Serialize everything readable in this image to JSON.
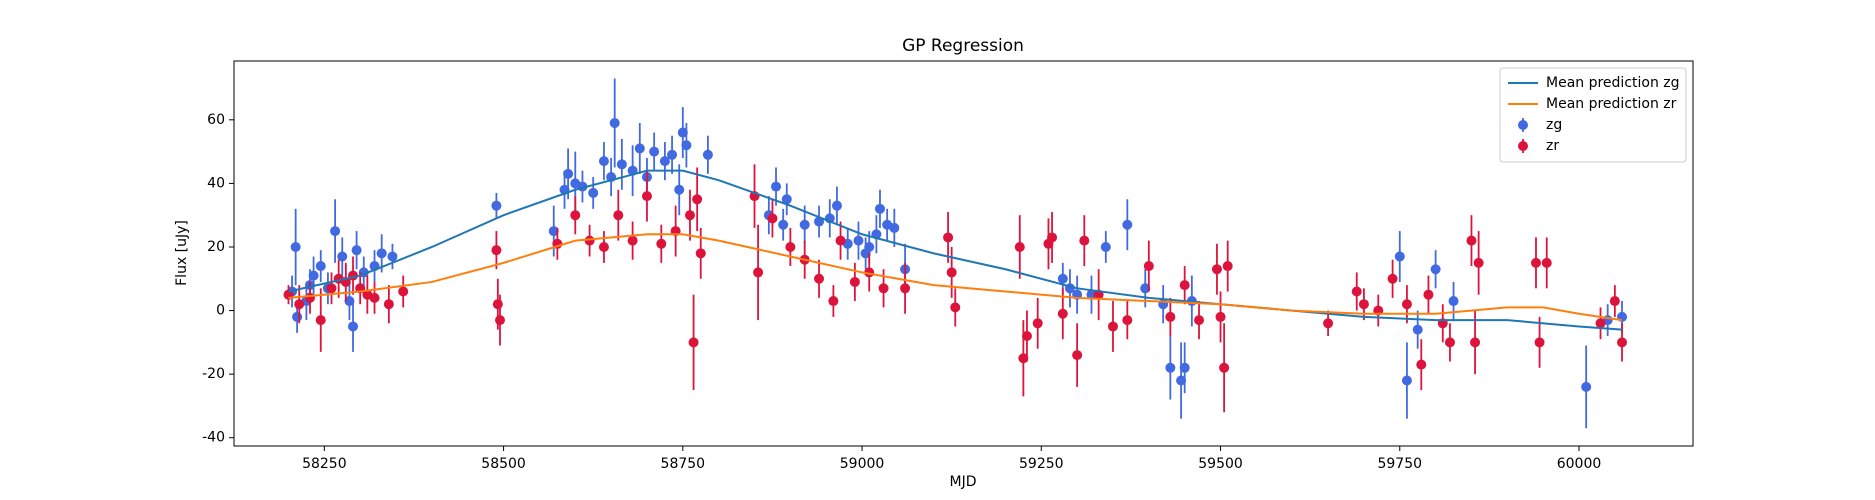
{
  "chart_data": {
    "type": "scatter",
    "title": "GP Regression",
    "xlabel": "MJD",
    "ylabel": "Flux [uJy]",
    "xlim": [
      58124,
      60159
    ],
    "ylim": [
      -42.6,
      78.5
    ],
    "xticks": [
      58250,
      58500,
      58750,
      59000,
      59250,
      59500,
      59750,
      60000
    ],
    "yticks": [
      -40,
      -20,
      0,
      20,
      40,
      60
    ],
    "legend": "upper right",
    "series": [
      {
        "name": "Mean prediction zg",
        "kind": "line",
        "color": "#1f77b4",
        "x": [
          58200,
          58300,
          58400,
          58500,
          58600,
          58700,
          58750,
          58800,
          58900,
          59000,
          59100,
          59200,
          59300,
          59400,
          59500,
          59600,
          59700,
          59800,
          59900,
          60000,
          60060
        ],
        "values": [
          6,
          11,
          20,
          30,
          38,
          44,
          44,
          41,
          33,
          24,
          18,
          13,
          7,
          4,
          2,
          0,
          -2,
          -3,
          -3,
          -5,
          -6
        ]
      },
      {
        "name": "Mean prediction zr",
        "kind": "line",
        "color": "#ff7f0e",
        "x": [
          58200,
          58300,
          58400,
          58500,
          58600,
          58700,
          58750,
          58800,
          58900,
          59000,
          59100,
          59200,
          59300,
          59400,
          59500,
          59600,
          59700,
          59800,
          59900,
          59950,
          60000,
          60060
        ],
        "values": [
          4,
          6,
          9,
          15,
          22,
          24,
          24,
          22,
          17,
          12,
          8,
          6,
          4,
          3,
          2,
          0,
          -1,
          -1,
          1,
          1,
          -1,
          -3
        ]
      },
      {
        "name": "zg",
        "kind": "errorbar",
        "color": "#4169e1",
        "x": [
          58205,
          58210,
          58212,
          58225,
          58230,
          58235,
          58245,
          58255,
          58265,
          58275,
          58285,
          58290,
          58295,
          58305,
          58320,
          58330,
          58345,
          58490,
          58570,
          58585,
          58590,
          58600,
          58610,
          58625,
          58640,
          58650,
          58655,
          58665,
          58680,
          58690,
          58700,
          58710,
          58725,
          58735,
          58745,
          58750,
          58755,
          58785,
          58870,
          58880,
          58890,
          58895,
          58920,
          58940,
          58955,
          58965,
          58980,
          58995,
          59005,
          59010,
          59020,
          59025,
          59035,
          59045,
          59060,
          59280,
          59290,
          59300,
          59320,
          59340,
          59370,
          59395,
          59420,
          59430,
          59445,
          59450,
          59460,
          59750,
          59760,
          59775,
          59800,
          59825,
          60010,
          60040,
          60060
        ],
        "values": [
          6,
          20,
          -2,
          3,
          8,
          11,
          14,
          7,
          25,
          17,
          3,
          -5,
          19,
          12,
          14,
          18,
          17,
          33,
          25,
          38,
          43,
          40,
          39,
          37,
          47,
          42,
          59,
          46,
          44,
          51,
          42,
          50,
          47,
          49,
          38,
          56,
          52,
          49,
          30,
          39,
          27,
          35,
          27,
          28,
          29,
          33,
          21,
          22,
          18,
          20,
          24,
          32,
          27,
          26,
          13,
          10,
          7,
          5,
          5,
          20,
          27,
          7,
          2,
          -18,
          -22,
          -18,
          3,
          17,
          -22,
          -6,
          13,
          3,
          -24,
          -3,
          -2
        ],
        "errors": [
          5,
          12,
          5,
          6,
          5,
          6,
          5,
          5,
          10,
          6,
          6,
          8,
          6,
          5,
          5,
          6,
          4,
          4,
          8,
          6,
          8,
          10,
          5,
          5,
          6,
          6,
          14,
          8,
          8,
          8,
          6,
          6,
          6,
          6,
          8,
          8,
          7,
          6,
          6,
          6,
          5,
          5,
          6,
          5,
          6,
          6,
          5,
          6,
          5,
          5,
          6,
          6,
          5,
          6,
          8,
          5,
          6,
          6,
          6,
          5,
          8,
          6,
          6,
          10,
          12,
          8,
          8,
          8,
          12,
          6,
          6,
          6,
          13,
          5,
          5
        ]
      },
      {
        "name": "zr",
        "kind": "errorbar",
        "color": "#dc143c",
        "x": [
          58200,
          58215,
          58230,
          58245,
          58260,
          58270,
          58280,
          58290,
          58300,
          58310,
          58320,
          58340,
          58360,
          58490,
          58492,
          58495,
          58575,
          58600,
          58620,
          58640,
          58660,
          58680,
          58700,
          58720,
          58740,
          58760,
          58765,
          58770,
          58775,
          58850,
          58855,
          58875,
          58900,
          58920,
          58940,
          58960,
          58970,
          58990,
          59010,
          59030,
          59060,
          59120,
          59125,
          59130,
          59220,
          59225,
          59230,
          59245,
          59260,
          59265,
          59280,
          59300,
          59310,
          59330,
          59350,
          59370,
          59400,
          59430,
          59450,
          59470,
          59495,
          59500,
          59505,
          59510,
          59650,
          59690,
          59700,
          59720,
          59740,
          59760,
          59780,
          59790,
          59810,
          59820,
          59850,
          59855,
          59860,
          59940,
          59945,
          59955,
          60030,
          60050,
          60060
        ],
        "values": [
          5,
          2,
          4,
          -3,
          7,
          10,
          9,
          11,
          7,
          5,
          4,
          2,
          6,
          19,
          2,
          -3,
          21,
          30,
          22,
          20,
          30,
          22,
          36,
          21,
          25,
          30,
          -10,
          35,
          18,
          36,
          12,
          29,
          20,
          16,
          10,
          3,
          22,
          9,
          12,
          7,
          7,
          23,
          12,
          1,
          20,
          -15,
          -8,
          -4,
          21,
          23,
          -1,
          -14,
          22,
          5,
          -5,
          -3,
          14,
          -2,
          8,
          -3,
          13,
          -2,
          -18,
          14,
          -4,
          6,
          2,
          0,
          10,
          2,
          -17,
          5,
          -4,
          -10,
          22,
          -10,
          15,
          15,
          -10,
          15,
          -4,
          3,
          -10
        ],
        "errors": [
          3,
          6,
          5,
          10,
          5,
          6,
          6,
          6,
          5,
          6,
          5,
          6,
          5,
          6,
          8,
          8,
          5,
          6,
          5,
          5,
          8,
          6,
          8,
          6,
          8,
          8,
          15,
          10,
          8,
          10,
          15,
          6,
          6,
          6,
          6,
          5,
          6,
          6,
          6,
          6,
          8,
          8,
          8,
          6,
          10,
          12,
          8,
          8,
          8,
          8,
          8,
          10,
          8,
          8,
          8,
          6,
          8,
          6,
          6,
          6,
          8,
          8,
          14,
          8,
          4,
          6,
          5,
          5,
          6,
          6,
          8,
          6,
          6,
          6,
          8,
          10,
          10,
          8,
          8,
          8,
          5,
          5,
          6
        ]
      }
    ]
  }
}
